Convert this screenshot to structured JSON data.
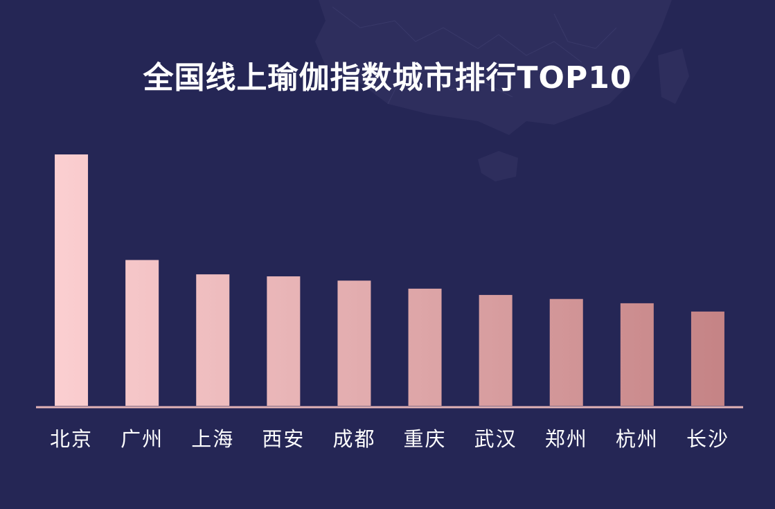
{
  "title": "全国线上瑜伽指数城市排行TOP10",
  "chart_data": {
    "type": "bar",
    "title": "全国线上瑜伽指数城市排行TOP10",
    "categories": [
      "北京",
      "广州",
      "上海",
      "西安",
      "成都",
      "重庆",
      "武汉",
      "郑州",
      "杭州",
      "长沙"
    ],
    "values": [
      100,
      58,
      52.3,
      51.5,
      49.8,
      46.6,
      44.1,
      42.5,
      40.8,
      37.5
    ],
    "ylim": [
      0,
      100
    ],
    "xlabel": "",
    "ylabel": "",
    "grid": false,
    "legend": "none",
    "colors": {
      "bar_start": "#fdd1d3",
      "bar_end": "#c38183",
      "baseline": "#e2b3b6",
      "tick_label": "#ffffff",
      "background": "#252655",
      "map": "#2f2f5e"
    }
  }
}
